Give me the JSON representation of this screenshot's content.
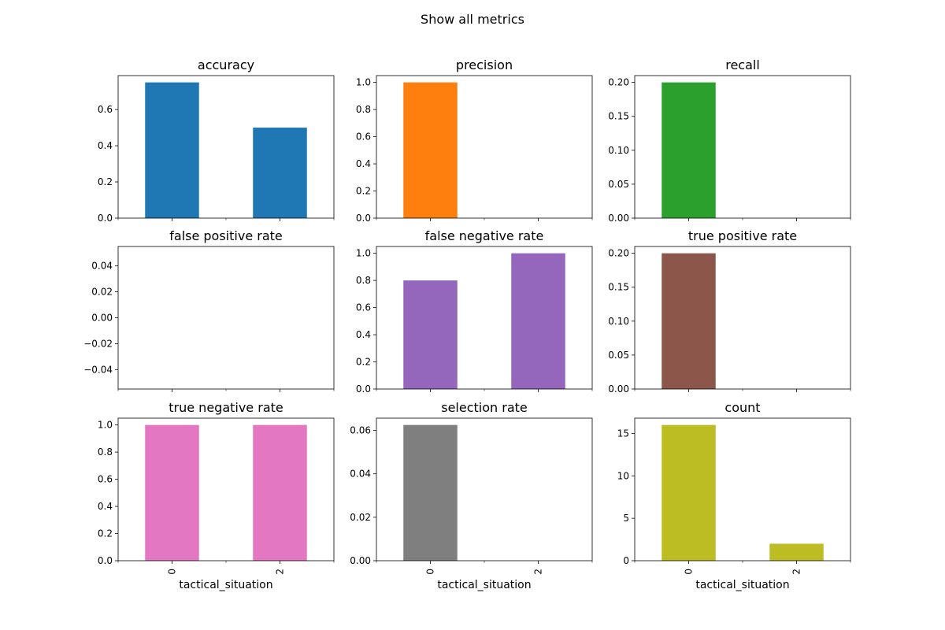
{
  "figure": {
    "title": "Show all metrics",
    "xlabel": "tactical_situation"
  },
  "chart_data": [
    {
      "type": "bar",
      "title": "accuracy",
      "categories": [
        "0",
        "2"
      ],
      "values": [
        0.75,
        0.5
      ],
      "ylim": [
        0,
        0.7875
      ],
      "yticks": [
        0.0,
        0.2,
        0.4,
        0.6
      ],
      "tick_decimals": 1,
      "color": "#1f77b4",
      "xlabel": "",
      "show_xtick_labels": false
    },
    {
      "type": "bar",
      "title": "precision",
      "categories": [
        "0",
        "2"
      ],
      "values": [
        1.0,
        0.0
      ],
      "ylim": [
        0,
        1.05
      ],
      "yticks": [
        0.0,
        0.2,
        0.4,
        0.6,
        0.8,
        1.0
      ],
      "tick_decimals": 1,
      "color": "#ff7f0e",
      "xlabel": "",
      "show_xtick_labels": false
    },
    {
      "type": "bar",
      "title": "recall",
      "categories": [
        "0",
        "2"
      ],
      "values": [
        0.2,
        0.0
      ],
      "ylim": [
        0,
        0.21
      ],
      "yticks": [
        0.0,
        0.05,
        0.1,
        0.15,
        0.2
      ],
      "tick_decimals": 2,
      "color": "#2ca02c",
      "xlabel": "",
      "show_xtick_labels": false
    },
    {
      "type": "bar",
      "title": "false positive rate",
      "categories": [
        "0",
        "2"
      ],
      "values": [
        0.0,
        0.0
      ],
      "ylim": [
        -0.055,
        0.055
      ],
      "yticks": [
        -0.04,
        -0.02,
        0.0,
        0.02,
        0.04
      ],
      "tick_decimals": 2,
      "color": "#d62728",
      "xlabel": "",
      "show_xtick_labels": false
    },
    {
      "type": "bar",
      "title": "false negative rate",
      "categories": [
        "0",
        "2"
      ],
      "values": [
        0.8,
        1.0
      ],
      "ylim": [
        0,
        1.05
      ],
      "yticks": [
        0.0,
        0.2,
        0.4,
        0.6,
        0.8,
        1.0
      ],
      "tick_decimals": 1,
      "color": "#9467bd",
      "xlabel": "",
      "show_xtick_labels": false
    },
    {
      "type": "bar",
      "title": "true positive rate",
      "categories": [
        "0",
        "2"
      ],
      "values": [
        0.2,
        0.0
      ],
      "ylim": [
        0,
        0.21
      ],
      "yticks": [
        0.0,
        0.05,
        0.1,
        0.15,
        0.2
      ],
      "tick_decimals": 2,
      "color": "#8c564b",
      "xlabel": "",
      "show_xtick_labels": false
    },
    {
      "type": "bar",
      "title": "true negative rate",
      "categories": [
        "0",
        "2"
      ],
      "values": [
        1.0,
        1.0
      ],
      "ylim": [
        0,
        1.05
      ],
      "yticks": [
        0.0,
        0.2,
        0.4,
        0.6,
        0.8,
        1.0
      ],
      "tick_decimals": 1,
      "color": "#e377c2",
      "xlabel": "tactical_situation",
      "show_xtick_labels": true
    },
    {
      "type": "bar",
      "title": "selection rate",
      "categories": [
        "0",
        "2"
      ],
      "values": [
        0.0625,
        0.0
      ],
      "ylim": [
        0,
        0.065625
      ],
      "yticks": [
        0.0,
        0.02,
        0.04,
        0.06
      ],
      "tick_decimals": 2,
      "color": "#7f7f7f",
      "xlabel": "tactical_situation",
      "show_xtick_labels": true
    },
    {
      "type": "bar",
      "title": "count",
      "categories": [
        "0",
        "2"
      ],
      "values": [
        16,
        2
      ],
      "ylim": [
        0,
        16.8
      ],
      "yticks": [
        0,
        5,
        10,
        15
      ],
      "tick_decimals": 0,
      "color": "#bcbd22",
      "xlabel": "tactical_situation",
      "show_xtick_labels": true
    }
  ]
}
